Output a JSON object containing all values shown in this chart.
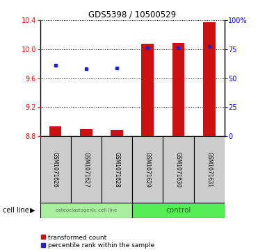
{
  "title": "GDS5398 / 10500529",
  "samples": [
    "GSM1071626",
    "GSM1071627",
    "GSM1071628",
    "GSM1071629",
    "GSM1071630",
    "GSM1071631"
  ],
  "bar_values": [
    8.93,
    8.9,
    8.89,
    10.07,
    10.08,
    10.37
  ],
  "blue_values": [
    9.78,
    9.73,
    9.74,
    10.02,
    10.02,
    10.04
  ],
  "bar_base": 8.8,
  "ylim_left": [
    8.8,
    10.4
  ],
  "ylim_right": [
    0,
    100
  ],
  "yticks_left": [
    8.8,
    9.2,
    9.6,
    10.0,
    10.4
  ],
  "yticks_right": [
    0,
    25,
    50,
    75,
    100
  ],
  "ytick_labels_right": [
    "0",
    "25",
    "50",
    "75",
    "100%"
  ],
  "cell_line_label": "cell line",
  "bar_color": "#cc1111",
  "blue_color": "#2222cc",
  "legend_items": [
    "transformed count",
    "percentile rank within the sample"
  ],
  "sample_panel_color": "#cccccc",
  "group1_label": "osteoclastogenic cell line",
  "group2_label": "control",
  "group1_color": "#aaeea0",
  "group2_color": "#55ee55",
  "group1_text_color": "#557755",
  "group2_text_color": "#226622"
}
